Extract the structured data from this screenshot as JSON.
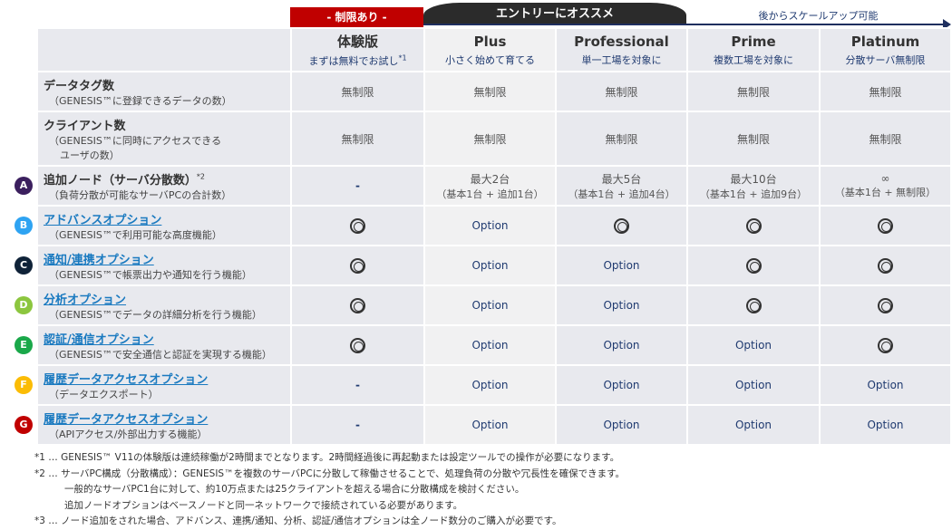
{
  "banners": {
    "limited": "- 制限あり -",
    "entry": "エントリーにオススメ",
    "scale": "後からスケールアップ可能"
  },
  "plans": [
    {
      "name": "体験版",
      "sub": "まずは無料でお試し",
      "sup": "*1"
    },
    {
      "name": "Plus",
      "sub": "小さく始めて育てる"
    },
    {
      "name": "Professional",
      "sub": "単一工場を対象に"
    },
    {
      "name": "Prime",
      "sub": "複数工場を対象に"
    },
    {
      "name": "Platinum",
      "sub": "分散サーバ無制限"
    }
  ],
  "rows": [
    {
      "title": "データタグ数",
      "desc": "（GENESIS™に登録できるデータの数）",
      "values": [
        "無制限",
        "無制限",
        "無制限",
        "無制限",
        "無制限"
      ]
    },
    {
      "title": "クライアント数",
      "desc": "（GENESIS™に同時にアクセスできる",
      "desc2": "ユーザの数）",
      "values": [
        "無制限",
        "無制限",
        "無制限",
        "無制限",
        "無制限"
      ]
    },
    {
      "badge": "A",
      "color": "#3b1f5e",
      "title": "追加ノード（サーバ分散数）",
      "sup": "*2",
      "desc": "（負荷分散が可能なサーバPCの合計数）",
      "values": [
        "-",
        "最大2台",
        "最大5台",
        "最大10台",
        "∞"
      ],
      "values2": [
        "",
        "（基本1台 + 追加1台）",
        "（基本1台 + 追加4台）",
        "（基本1台 + 追加9台）",
        "（基本1台 + 無制限）"
      ]
    },
    {
      "badge": "B",
      "color": "#2ea3f2",
      "link": true,
      "title": "アドバンスオプション",
      "desc": "（GENESIS™で利用可能な高度機能）",
      "values": [
        "◎",
        "Option",
        "◎",
        "◎",
        "◎"
      ]
    },
    {
      "badge": "C",
      "color": "#0f2238",
      "link": true,
      "title": "通知/連携オプション",
      "desc": "（GENESIS™で帳票出力や通知を行う機能）",
      "values": [
        "◎",
        "Option",
        "Option",
        "◎",
        "◎"
      ]
    },
    {
      "badge": "D",
      "color": "#8cc63f",
      "link": true,
      "title": "分析オプション",
      "desc": "（GENESIS™でデータの詳細分析を行う機能）",
      "values": [
        "◎",
        "Option",
        "Option",
        "◎",
        "◎"
      ]
    },
    {
      "badge": "E",
      "color": "#1aa84a",
      "link": true,
      "title": "認証/通信オプション",
      "desc": "（GENESIS™で安全通信と認証を実現する機能）",
      "values": [
        "◎",
        "Option",
        "Option",
        "Option",
        "◎"
      ]
    },
    {
      "badge": "F",
      "color": "#fbbc05",
      "link": true,
      "title": "履歴データアクセスオプション",
      "desc": "（データエクスポート）",
      "values": [
        "-",
        "Option",
        "Option",
        "Option",
        "Option"
      ]
    },
    {
      "badge": "G",
      "color": "#c00000",
      "link": true,
      "title": "履歴データアクセスオプション",
      "desc": "（APIアクセス/外部出力する機能）",
      "values": [
        "-",
        "Option",
        "Option",
        "Option",
        "Option"
      ]
    }
  ],
  "notes": [
    "*1 … GENESIS™ V11の体験版は連続稼働が2時間までとなります。2時間経過後に再起動または設定ツールでの操作が必要になります。",
    "*2 … サーバPC構成（分散構成）：GENESIS™を複数のサーバPCに分散して稼働させることで、処理負荷の分散や冗長性を確保できます。",
    "一般的なサーバPC1台に対して、約10万点または25クライアントを超える場合に分散構成を検討ください。",
    "追加ノードオプションはベースノードと同一ネットワークで接続されている必要があります。",
    "*3 … ノード追加をされた場合、アドバンス、連携/通知、分析、認証/通信オプションは全ノード数分のご購入が必要です。"
  ]
}
